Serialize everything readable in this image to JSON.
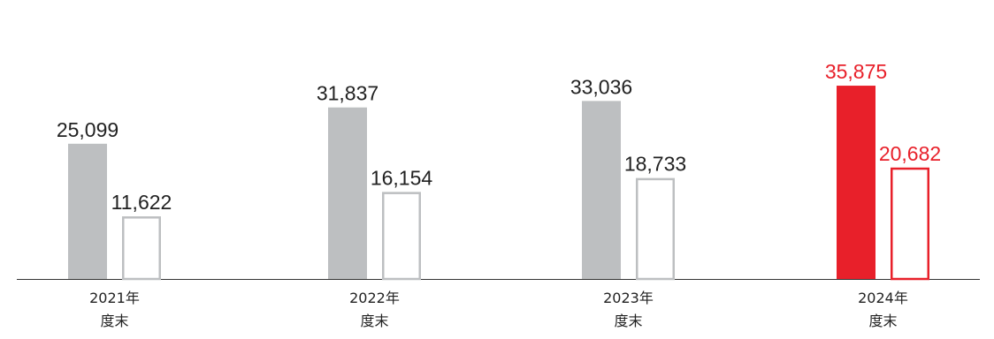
{
  "chart_data": {
    "type": "bar",
    "categories": [
      {
        "line1": "2021年",
        "line2": "度末"
      },
      {
        "line1": "2022年",
        "line2": "度末"
      },
      {
        "line1": "2023年",
        "line2": "度末"
      },
      {
        "line1": "2024年",
        "line2": "度末"
      }
    ],
    "series": [
      {
        "style": "filled",
        "values": [
          25099,
          31837,
          33036,
          35875
        ],
        "labels": [
          "25,099",
          "31,837",
          "33,036",
          "35,875"
        ]
      },
      {
        "style": "outline",
        "values": [
          11622,
          16154,
          18733,
          20682
        ],
        "labels": [
          "11,622",
          "16,154",
          "18,733",
          "20,682"
        ]
      }
    ],
    "highlight_index": 3,
    "colors": {
      "default_fill": "#bdbfc1",
      "default_outline": "#bdbfc1",
      "highlight": "#e8202a",
      "default_text": "#222222",
      "axis": "#333333"
    },
    "ylim": [
      0,
      38000
    ],
    "title": "",
    "xlabel": "",
    "ylabel": "",
    "grid": false,
    "legend": "none"
  }
}
